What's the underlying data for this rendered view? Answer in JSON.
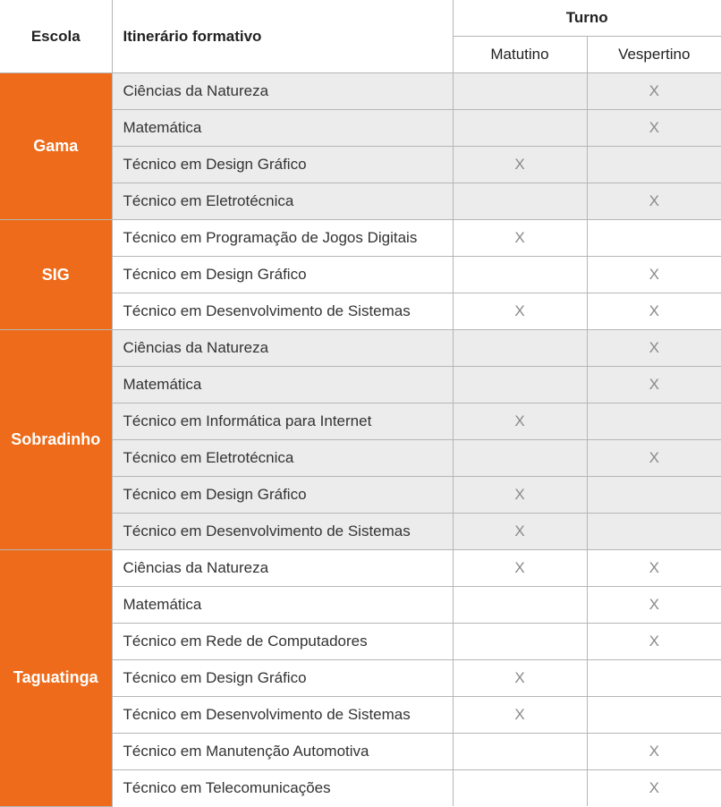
{
  "table": {
    "columns": {
      "escola": "Escola",
      "itinerario": "Itinerário formativo",
      "turno": "Turno",
      "matutino": "Matutino",
      "vespertino": "Vespertino"
    },
    "mark_glyph": "X",
    "header_bg": "#ed6b1a",
    "header_text_color": "#ffffff",
    "row_alt_bg": "#ececec",
    "row_bg": "#ffffff",
    "border_color": "#b6b6b6",
    "mark_color": "#8a8a8a",
    "schools": [
      {
        "name": "Gama",
        "shade": true,
        "rows": [
          {
            "itin": "Ciências da Natureza",
            "mat": false,
            "vesp": true
          },
          {
            "itin": "Matemática",
            "mat": false,
            "vesp": true
          },
          {
            "itin": "Técnico em Design Gráfico",
            "mat": true,
            "vesp": false
          },
          {
            "itin": "Técnico em Eletrotécnica",
            "mat": false,
            "vesp": true
          }
        ]
      },
      {
        "name": "SIG",
        "shade": false,
        "rows": [
          {
            "itin": "Técnico em Programação de Jogos Digitais",
            "mat": true,
            "vesp": false
          },
          {
            "itin": "Técnico em Design Gráfico",
            "mat": false,
            "vesp": true
          },
          {
            "itin": "Técnico em Desenvolvimento de Sistemas",
            "mat": true,
            "vesp": true
          }
        ]
      },
      {
        "name": "Sobradinho",
        "shade": true,
        "rows": [
          {
            "itin": "Ciências da Natureza",
            "mat": false,
            "vesp": true
          },
          {
            "itin": "Matemática",
            "mat": false,
            "vesp": true
          },
          {
            "itin": "Técnico em Informática para Internet",
            "mat": true,
            "vesp": false
          },
          {
            "itin": "Técnico em Eletrotécnica",
            "mat": false,
            "vesp": true
          },
          {
            "itin": "Técnico em Design Gráfico",
            "mat": true,
            "vesp": false
          },
          {
            "itin": "Técnico em Desenvolvimento de Sistemas",
            "mat": true,
            "vesp": false
          }
        ]
      },
      {
        "name": "Taguatinga",
        "shade": false,
        "rows": [
          {
            "itin": "Ciências da Natureza",
            "mat": true,
            "vesp": true
          },
          {
            "itin": "Matemática",
            "mat": false,
            "vesp": true
          },
          {
            "itin": "Técnico em Rede de Computadores",
            "mat": false,
            "vesp": true
          },
          {
            "itin": "Técnico em Design Gráfico",
            "mat": true,
            "vesp": false
          },
          {
            "itin": "Técnico em Desenvolvimento de Sistemas",
            "mat": true,
            "vesp": false
          },
          {
            "itin": "Técnico em Manutenção Automotiva",
            "mat": false,
            "vesp": true
          },
          {
            "itin": "Técnico em Telecomunicações",
            "mat": false,
            "vesp": true
          }
        ]
      }
    ]
  }
}
